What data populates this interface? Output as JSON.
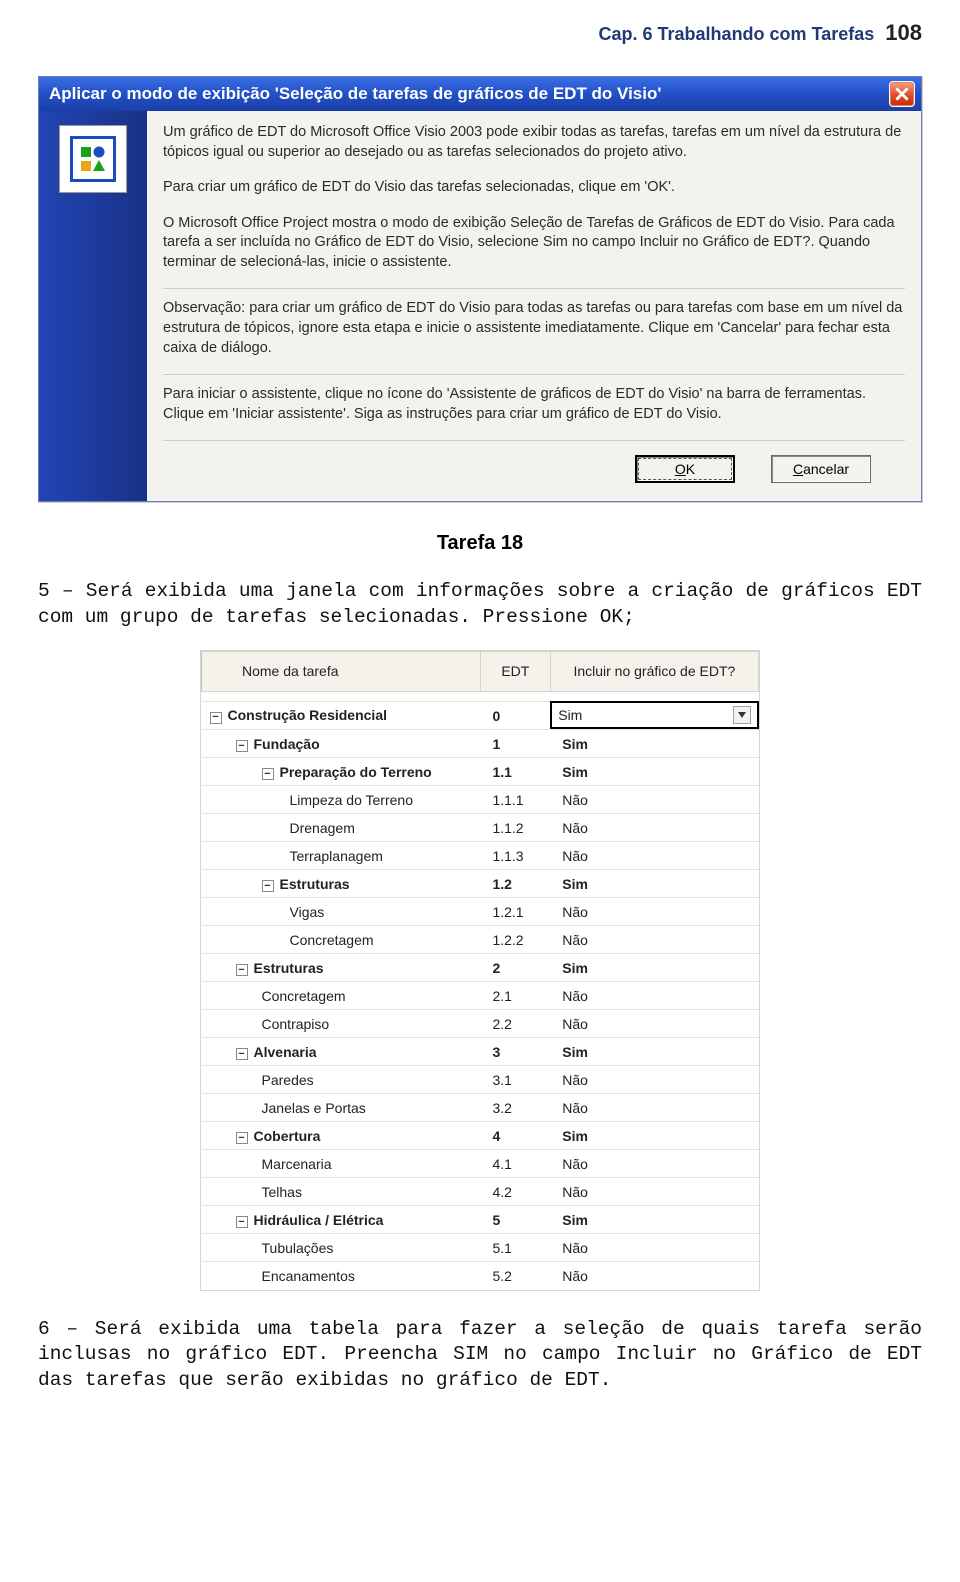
{
  "header": {
    "chapter": "Cap. 6 Trabalhando com Tarefas",
    "page_number": "108"
  },
  "dialog": {
    "title": "Aplicar o modo de exibição 'Seleção de tarefas de gráficos de EDT do Visio'",
    "paragraphs": [
      "Um gráfico de EDT do Microsoft Office Visio 2003 pode exibir todas as tarefas, tarefas em um nível da estrutura de tópicos igual ou superior ao desejado ou as tarefas selecionados do projeto ativo.",
      "Para criar um gráfico de EDT do Visio das tarefas selecionadas, clique em 'OK'.",
      "O Microsoft Office Project mostra o modo de exibição Seleção de Tarefas de Gráficos de EDT do Visio. Para cada tarefa a ser incluída no Gráfico de EDT do Visio, selecione Sim no campo Incluir no Gráfico de EDT?. Quando terminar de selecioná-las, inicie o assistente.",
      "Observação: para criar um gráfico de EDT do Visio para todas as tarefas ou para tarefas com base em um nível da estrutura de tópicos, ignore esta etapa e inicie o assistente imediatamente. Clique em 'Cancelar' para fechar esta caixa de diálogo.",
      "Para iniciar o assistente, clique no ícone do 'Assistente de gráficos de EDT do Visio' na barra de ferramentas. Clique em 'Iniciar assistente'. Siga as instruções para criar um gráfico de EDT do Visio."
    ],
    "ok_label": "OK",
    "cancel_label": "Cancelar"
  },
  "tarefa_label": "Tarefa 18",
  "body_text_1": "5 – Será exibida uma janela com informações sobre a criação de gráficos EDT com um grupo de tarefas selecionadas. Pressione OK;",
  "body_text_2": "6 – Será exibida uma tabela para fazer a seleção de quais tarefa serão inclusas no gráfico EDT. Preencha SIM no campo Incluir no Gráfico de EDT das tarefas que serão exibidas no gráfico de EDT.",
  "table": {
    "columns": [
      "Nome da tarefa",
      "EDT",
      "Incluir no gráfico de EDT?"
    ],
    "rows": [
      {
        "name": "Construção Residencial",
        "edt": "0",
        "include": "Sim",
        "level": 0,
        "bold": true,
        "collapsible": true,
        "first": true
      },
      {
        "name": "Fundação",
        "edt": "1",
        "include": "Sim",
        "level": 1,
        "bold": true,
        "collapsible": true
      },
      {
        "name": "Preparação do Terreno",
        "edt": "1.1",
        "include": "Sim",
        "level": 2,
        "bold": true,
        "collapsible": true
      },
      {
        "name": "Limpeza do Terreno",
        "edt": "1.1.1",
        "include": "Não",
        "level": 3
      },
      {
        "name": "Drenagem",
        "edt": "1.1.2",
        "include": "Não",
        "level": 3
      },
      {
        "name": "Terraplanagem",
        "edt": "1.1.3",
        "include": "Não",
        "level": 3
      },
      {
        "name": "Estruturas",
        "edt": "1.2",
        "include": "Sim",
        "level": 2,
        "bold": true,
        "collapsible": true
      },
      {
        "name": "Vigas",
        "edt": "1.2.1",
        "include": "Não",
        "level": 3
      },
      {
        "name": "Concretagem",
        "edt": "1.2.2",
        "include": "Não",
        "level": 3
      },
      {
        "name": "Estruturas",
        "edt": "2",
        "include": "Sim",
        "level": 1,
        "bold": true,
        "collapsible": true
      },
      {
        "name": "Concretagem",
        "edt": "2.1",
        "include": "Não",
        "level": 2
      },
      {
        "name": "Contrapiso",
        "edt": "2.2",
        "include": "Não",
        "level": 2
      },
      {
        "name": "Alvenaria",
        "edt": "3",
        "include": "Sim",
        "level": 1,
        "bold": true,
        "collapsible": true
      },
      {
        "name": "Paredes",
        "edt": "3.1",
        "include": "Não",
        "level": 2
      },
      {
        "name": "Janelas e Portas",
        "edt": "3.2",
        "include": "Não",
        "level": 2
      },
      {
        "name": "Cobertura",
        "edt": "4",
        "include": "Sim",
        "level": 1,
        "bold": true,
        "collapsible": true
      },
      {
        "name": "Marcenaria",
        "edt": "4.1",
        "include": "Não",
        "level": 2
      },
      {
        "name": "Telhas",
        "edt": "4.2",
        "include": "Não",
        "level": 2
      },
      {
        "name": "Hidráulica / Elétrica",
        "edt": "5",
        "include": "Sim",
        "level": 1,
        "bold": true,
        "collapsible": true
      },
      {
        "name": "Tubulações",
        "edt": "5.1",
        "include": "Não",
        "level": 2
      },
      {
        "name": "Encanamentos",
        "edt": "5.2",
        "include": "Não",
        "level": 2
      }
    ]
  },
  "colors": {
    "header_text": "#223a74",
    "titlebar_bg": "#234fc5",
    "sidebar_bg": "#1a3285",
    "dialog_bg": "#f2f2ee",
    "table_header_bg": "#f4f2eb",
    "border": "#d6d3cc"
  }
}
